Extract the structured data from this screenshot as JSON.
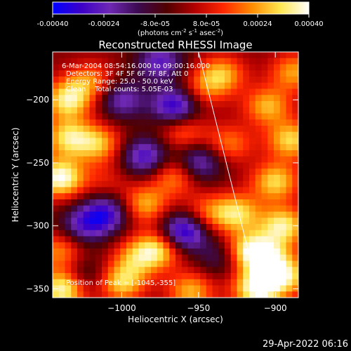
{
  "colorbar": {
    "ticks": [
      "-0.00040",
      "-0.00024",
      "-8.0e-05",
      "8.0e-05",
      "0.00024",
      "0.00040"
    ],
    "unit_label": "(photons cm",
    "unit_exp1": "-2",
    "unit_mid": " s",
    "unit_exp2": "-1",
    "unit_mid2": " asec",
    "unit_exp3": "-2",
    "unit_end": ")",
    "range": [
      -0.0004,
      0.0004
    ],
    "colors": [
      "#0000ff",
      "#3c00c8",
      "#6e28b4",
      "#3c0a50",
      "#500000",
      "#b40000",
      "#ff2800",
      "#ff8c00",
      "#ffe650",
      "#ffffff"
    ]
  },
  "chart_data": {
    "type": "heatmap",
    "title": "Reconstructed RHESSI Image",
    "xlabel": "Heliocentric X (arcsec)",
    "ylabel": "Heliocentric Y (arcsec)",
    "xlim": [
      -1045,
      -885
    ],
    "ylim": [
      -357,
      -162
    ],
    "xticks": [
      -1000,
      -950,
      -900
    ],
    "xtick_labels": [
      "−1000",
      "−950",
      "−900"
    ],
    "yticks": [
      -350,
      -300,
      -250,
      -200
    ],
    "ytick_labels": [
      "−350",
      "−300",
      "−250",
      "−200"
    ],
    "limb_line": [
      [
        -950,
        -162
      ],
      [
        -910,
        -357
      ]
    ],
    "annotations": [
      "6-Mar-2004 08:54:16.000 to 09:00:16.000",
      "Detectors: 3F 4F 5F 6F 7F 8F, Att 0",
      "Energy Range: 25.0 - 50.0 keV",
      "Clean    Total counts: 5.05E-03"
    ],
    "peak_label": "Position of Peak = [-1045,-355]",
    "sources": [
      {
        "x": -1035,
        "y": -200,
        "value": 0.00034
      },
      {
        "x": -1040,
        "y": -262,
        "value": 0.0004
      },
      {
        "x": -1035,
        "y": -230,
        "value": 0.0003
      },
      {
        "x": -1040,
        "y": -320,
        "value": 0.00022
      },
      {
        "x": -1038,
        "y": -350,
        "value": 0.0004
      },
      {
        "x": -1020,
        "y": -185,
        "value": 0.0002
      },
      {
        "x": -1015,
        "y": -235,
        "value": 0.00026
      },
      {
        "x": -1010,
        "y": -265,
        "value": 0.0001
      },
      {
        "x": -1000,
        "y": -345,
        "value": 0.0003
      },
      {
        "x": -990,
        "y": -325,
        "value": 0.00022
      },
      {
        "x": -985,
        "y": -283,
        "value": 0.00026
      },
      {
        "x": -975,
        "y": -318,
        "value": 0.0003
      },
      {
        "x": -965,
        "y": -260,
        "value": 0.00024
      },
      {
        "x": -960,
        "y": -225,
        "value": 0.0002
      },
      {
        "x": -955,
        "y": -352,
        "value": 0.00026
      },
      {
        "x": -948,
        "y": -192,
        "value": 0.00016
      },
      {
        "x": -945,
        "y": -290,
        "value": 0.00018
      },
      {
        "x": -935,
        "y": -180,
        "value": 0.00026
      },
      {
        "x": -930,
        "y": -235,
        "value": 0.0002
      },
      {
        "x": -925,
        "y": -290,
        "value": 0.0003
      },
      {
        "x": -918,
        "y": -320,
        "value": 0.00032
      },
      {
        "x": -912,
        "y": -350,
        "value": 0.0004
      },
      {
        "x": -905,
        "y": -205,
        "value": 0.00026
      },
      {
        "x": -900,
        "y": -265,
        "value": 0.0003
      },
      {
        "x": -895,
        "y": -300,
        "value": 0.00034
      },
      {
        "x": -893,
        "y": -340,
        "value": 0.0003
      },
      {
        "x": -890,
        "y": -232,
        "value": 0.0003
      },
      {
        "x": -888,
        "y": -178,
        "value": 0.00024
      },
      {
        "x": -905,
        "y": -325,
        "value": 0.00026
      },
      {
        "x": -1025,
        "y": -300,
        "value": -0.00024
      },
      {
        "x": -1000,
        "y": -200,
        "value": -0.00024
      },
      {
        "x": -985,
        "y": -245,
        "value": -0.0003
      },
      {
        "x": -965,
        "y": -205,
        "value": -0.00036
      },
      {
        "x": -960,
        "y": -305,
        "value": -0.0004
      },
      {
        "x": -950,
        "y": -250,
        "value": -0.00028
      },
      {
        "x": -1010,
        "y": -290,
        "value": -0.0003
      },
      {
        "x": -975,
        "y": -170,
        "value": -0.00026
      },
      {
        "x": -935,
        "y": -325,
        "value": -0.00016
      },
      {
        "x": -1025,
        "y": -340,
        "value": -0.00016
      }
    ]
  },
  "footer": {
    "timestamp": "29-Apr-2022 06:16"
  }
}
